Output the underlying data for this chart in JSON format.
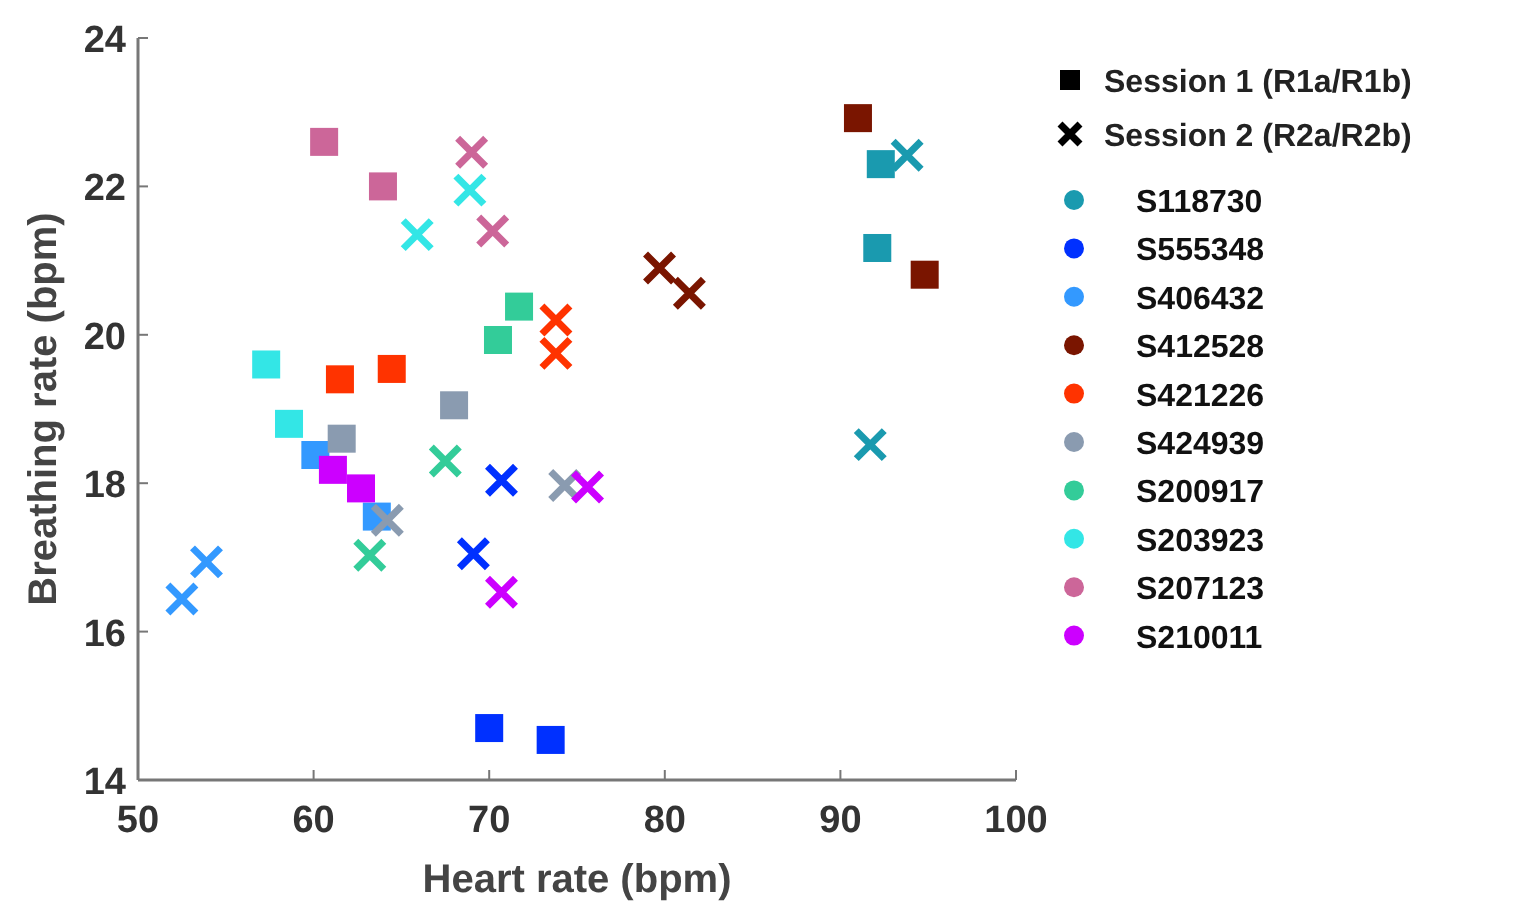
{
  "chart_data": {
    "type": "scatter",
    "xlabel": "Heart rate (bpm)",
    "ylabel": "Breathing rate (bpm)",
    "xlim": [
      50,
      100
    ],
    "xticks": [
      50,
      60,
      70,
      80,
      90,
      100
    ],
    "ylim": [
      14,
      24
    ],
    "yticks": [
      14,
      16,
      18,
      20,
      22,
      24
    ],
    "grid": false,
    "legend": "right",
    "annotations": [
      "Session 1 (R1a/R1b)",
      "Session 2 (R2a/R2b)"
    ],
    "series": [
      {
        "name": "S118730",
        "color": "#1a9aaf",
        "marker": "square",
        "x": [
          92.3,
          92.1
        ],
        "values": [
          22.3,
          21.17
        ]
      },
      {
        "color": "#1a9aaf",
        "marker": "cross",
        "x": [
          93.8,
          91.7
        ],
        "values": [
          22.42,
          18.52
        ]
      },
      {
        "name": "S555348",
        "color": "#0030ff",
        "marker": "square",
        "x": [
          70.0,
          73.5
        ],
        "values": [
          14.7,
          14.54
        ]
      },
      {
        "color": "#0030ff",
        "marker": "cross",
        "x": [
          70.7,
          69.1
        ],
        "values": [
          18.04,
          17.05
        ]
      },
      {
        "name": "S406432",
        "color": "#3399ff",
        "marker": "square",
        "x": [
          60.1,
          63.6
        ],
        "values": [
          18.38,
          17.55
        ]
      },
      {
        "color": "#3399ff",
        "marker": "cross",
        "x": [
          52.5,
          53.9
        ],
        "values": [
          16.44,
          16.94
        ]
      },
      {
        "name": "S412528",
        "color": "#7a1500",
        "marker": "square",
        "x": [
          91.0,
          94.8
        ],
        "values": [
          22.92,
          20.81
        ]
      },
      {
        "color": "#7a1500",
        "marker": "cross",
        "x": [
          79.7,
          81.4
        ],
        "values": [
          20.9,
          20.56
        ]
      },
      {
        "name": "S421226",
        "color": "#ff3300",
        "marker": "square",
        "x": [
          61.5,
          64.45
        ],
        "values": [
          19.4,
          19.54
        ]
      },
      {
        "color": "#ff3300",
        "marker": "cross",
        "x": [
          73.8,
          73.8
        ],
        "values": [
          20.2,
          19.75
        ]
      },
      {
        "name": "S424939",
        "color": "#8a9bb0",
        "marker": "square",
        "x": [
          61.6,
          68.0
        ],
        "values": [
          18.6,
          19.05
        ]
      },
      {
        "color": "#8a9bb0",
        "marker": "cross",
        "x": [
          64.2,
          74.3
        ],
        "values": [
          17.5,
          17.97
        ]
      },
      {
        "name": "S200917",
        "color": "#33cc99",
        "marker": "square",
        "x": [
          70.5,
          71.7
        ],
        "values": [
          19.93,
          20.38
        ]
      },
      {
        "color": "#33cc99",
        "marker": "cross",
        "x": [
          67.5,
          63.2
        ],
        "values": [
          18.3,
          17.03
        ]
      },
      {
        "name": "S203923",
        "color": "#33e6e6",
        "marker": "square",
        "x": [
          57.3,
          58.6
        ],
        "values": [
          19.6,
          18.8
        ]
      },
      {
        "color": "#33e6e6",
        "marker": "cross",
        "x": [
          65.9,
          68.9
        ],
        "values": [
          21.35,
          21.95
        ]
      },
      {
        "name": "S207123",
        "color": "#cc6699",
        "marker": "square",
        "x": [
          60.6,
          63.95
        ],
        "values": [
          22.6,
          22.0
        ]
      },
      {
        "color": "#cc6699",
        "marker": "cross",
        "x": [
          69.0,
          70.2
        ],
        "values": [
          22.46,
          21.4
        ]
      },
      {
        "name": "S210011",
        "color": "#cc00ff",
        "marker": "square",
        "x": [
          61.1,
          62.7
        ],
        "values": [
          18.18,
          17.93
        ]
      },
      {
        "color": "#cc00ff",
        "marker": "cross",
        "x": [
          70.7,
          75.6
        ],
        "values": [
          16.53,
          17.95
        ]
      }
    ]
  }
}
